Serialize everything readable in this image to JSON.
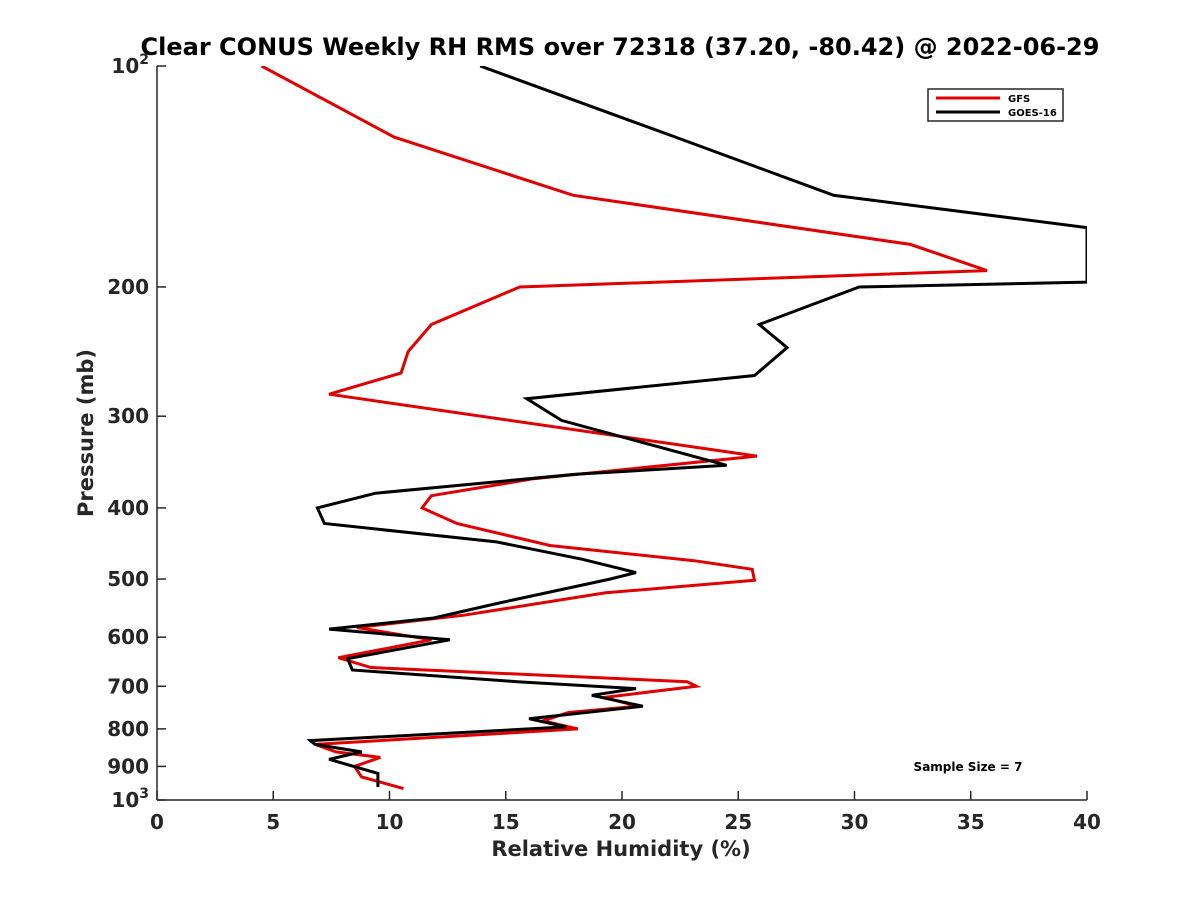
{
  "chart_data": {
    "type": "line",
    "title": "Clear CONUS Weekly RH RMS over 72318 (37.20, -80.42) @ 2022-06-29",
    "xlabel": "Relative Humidity (%)",
    "ylabel": "Pressure (mb)",
    "xlim": [
      0,
      40
    ],
    "ylim": [
      100,
      1000
    ],
    "y_scale": "log",
    "y_reversed": true,
    "x_ticks": [
      0,
      5,
      10,
      15,
      20,
      25,
      30,
      35,
      40
    ],
    "y_ticks": [
      {
        "value": 100,
        "label": "10",
        "sup": "2"
      },
      {
        "value": 200,
        "label": "200",
        "sup": ""
      },
      {
        "value": 300,
        "label": "300",
        "sup": ""
      },
      {
        "value": 400,
        "label": "400",
        "sup": ""
      },
      {
        "value": 500,
        "label": "500",
        "sup": ""
      },
      {
        "value": 600,
        "label": "600",
        "sup": ""
      },
      {
        "value": 700,
        "label": "700",
        "sup": ""
      },
      {
        "value": 800,
        "label": "800",
        "sup": ""
      },
      {
        "value": 900,
        "label": "900",
        "sup": ""
      },
      {
        "value": 1000,
        "label": "10",
        "sup": "3"
      }
    ],
    "grid": false,
    "legend_position": "top-right",
    "annotation": "Sample Size = 7",
    "series": [
      {
        "name": "GFS",
        "color": "#e00000",
        "points": [
          [
            4.5,
            100
          ],
          [
            10.2,
            125
          ],
          [
            17.9,
            150
          ],
          [
            32.4,
            175
          ],
          [
            35.7,
            190
          ],
          [
            15.6,
            200
          ],
          [
            11.8,
            225
          ],
          [
            10.8,
            245
          ],
          [
            10.5,
            262
          ],
          [
            7.4,
            280
          ],
          [
            25.8,
            340
          ],
          [
            16.2,
            365
          ],
          [
            11.8,
            385
          ],
          [
            11.4,
            400
          ],
          [
            12.9,
            420
          ],
          [
            16.9,
            450
          ],
          [
            23.1,
            472
          ],
          [
            25.6,
            485
          ],
          [
            25.7,
            502
          ],
          [
            19.3,
            522
          ],
          [
            13.2,
            560
          ],
          [
            8.6,
            582
          ],
          [
            11.8,
            605
          ],
          [
            7.8,
            640
          ],
          [
            9.2,
            660
          ],
          [
            22.8,
            690
          ],
          [
            23.2,
            700
          ],
          [
            19.2,
            725
          ],
          [
            20.7,
            745
          ],
          [
            17.7,
            760
          ],
          [
            16.6,
            780
          ],
          [
            18.1,
            800
          ],
          [
            6.8,
            840
          ],
          [
            7.7,
            860
          ],
          [
            9.6,
            875
          ],
          [
            8.5,
            900
          ],
          [
            8.8,
            930
          ],
          [
            10.6,
            965
          ]
        ]
      },
      {
        "name": "GOES-16",
        "color": "#000000",
        "points": [
          [
            13.9,
            100
          ],
          [
            22.3,
            125
          ],
          [
            29.1,
            150
          ],
          [
            40.0,
            166
          ],
          [
            40.0,
            197
          ],
          [
            30.2,
            200
          ],
          [
            25.9,
            225
          ],
          [
            27.1,
            242
          ],
          [
            25.7,
            264
          ],
          [
            15.9,
            284
          ],
          [
            17.4,
            304
          ],
          [
            24.5,
            350
          ],
          [
            18.0,
            360
          ],
          [
            9.4,
            382
          ],
          [
            6.9,
            400
          ],
          [
            7.2,
            420
          ],
          [
            14.6,
            445
          ],
          [
            18.3,
            470
          ],
          [
            20.6,
            490
          ],
          [
            19.5,
            500
          ],
          [
            14.6,
            540
          ],
          [
            11.9,
            565
          ],
          [
            7.4,
            585
          ],
          [
            12.6,
            605
          ],
          [
            8.2,
            642
          ],
          [
            8.4,
            665
          ],
          [
            15.5,
            690
          ],
          [
            20.6,
            705
          ],
          [
            18.7,
            720
          ],
          [
            20.9,
            745
          ],
          [
            16.0,
            775
          ],
          [
            17.6,
            795
          ],
          [
            6.6,
            830
          ],
          [
            6.8,
            840
          ],
          [
            8.8,
            860
          ],
          [
            7.4,
            880
          ],
          [
            9.5,
            920
          ],
          [
            9.5,
            960
          ]
        ]
      }
    ]
  }
}
